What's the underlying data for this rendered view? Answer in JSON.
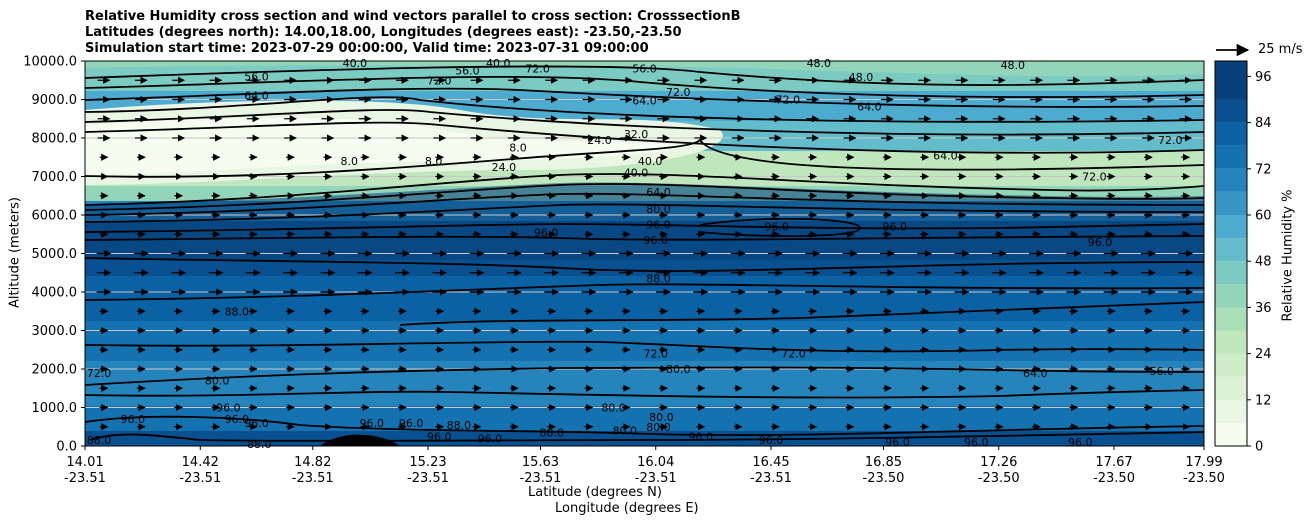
{
  "title": {
    "line1": "Relative Humidity cross section and wind vectors parallel to cross section: CrosssectionB",
    "line2": "Latitudes (degrees north): 14.00,18.00, Longitudes (degrees east): -23.50,-23.50",
    "line3": "Simulation start time: 2023-07-29 00:00:00, Valid time: 2023-07-31 09:00:00"
  },
  "axes": {
    "ylabel": "Altitude (meters)",
    "xlabel_lat": "Latitude (degrees N)",
    "xlabel_lon": "Longitude (degrees E)",
    "colorbar_label": "Relative Humidity %",
    "quiver_key": "25 m/s"
  },
  "colors": {
    "cmap": [
      "#f7fcf0",
      "#e9f6e4",
      "#dcf1d5",
      "#cfecc8",
      "#bfe6bc",
      "#aadeb7",
      "#93d5b9",
      "#7bcbc3",
      "#63bccb",
      "#4dabd0",
      "#3796c4",
      "#2584bb",
      "#1572b0",
      "#0a61a3",
      "#08508f",
      "#08407a"
    ],
    "contour": "#000000",
    "grid": "#c8c8c8"
  },
  "chart_data": {
    "type": "heatmap",
    "title": "Relative Humidity cross section and wind vectors parallel to cross section: CrosssectionB",
    "x_ticks": [
      {
        "lat": "14.01",
        "lon": "-23.51"
      },
      {
        "lat": "14.42",
        "lon": "-23.51"
      },
      {
        "lat": "14.82",
        "lon": "-23.51"
      },
      {
        "lat": "15.23",
        "lon": "-23.51"
      },
      {
        "lat": "15.63",
        "lon": "-23.51"
      },
      {
        "lat": "16.04",
        "lon": "-23.51"
      },
      {
        "lat": "16.45",
        "lon": "-23.51"
      },
      {
        "lat": "16.85",
        "lon": "-23.50"
      },
      {
        "lat": "17.26",
        "lon": "-23.50"
      },
      {
        "lat": "17.67",
        "lon": "-23.50"
      },
      {
        "lat": "17.99",
        "lon": "-23.50"
      }
    ],
    "x_range": [
      14.01,
      17.99
    ],
    "y_ticks": [
      "0.0",
      "1000.0",
      "2000.0",
      "3000.0",
      "4000.0",
      "5000.0",
      "6000.0",
      "7000.0",
      "8000.0",
      "9000.0",
      "10000.0"
    ],
    "y_range": [
      0,
      10000
    ],
    "colorbar_ticks": [
      "0",
      "12",
      "24",
      "36",
      "48",
      "60",
      "72",
      "84",
      "96"
    ],
    "colorbar_range": [
      0,
      100
    ],
    "grid": true,
    "contour_labels": [
      {
        "text": "40.0",
        "lat": 14.97,
        "alt": 9950
      },
      {
        "text": "40.0",
        "lat": 15.48,
        "alt": 9950
      },
      {
        "text": "56.0",
        "lat": 14.62,
        "alt": 9600
      },
      {
        "text": "56.0",
        "lat": 15.37,
        "alt": 9750
      },
      {
        "text": "72.0",
        "lat": 15.27,
        "alt": 9500
      },
      {
        "text": "72.0",
        "lat": 15.62,
        "alt": 9800
      },
      {
        "text": "72.0",
        "lat": 16.51,
        "alt": 9000
      },
      {
        "text": "48.0",
        "lat": 16.62,
        "alt": 9950
      },
      {
        "text": "48.0",
        "lat": 17.31,
        "alt": 9900
      },
      {
        "text": "48.0",
        "lat": 16.77,
        "alt": 9580
      },
      {
        "text": "56.0",
        "lat": 16.0,
        "alt": 9800
      },
      {
        "text": "72.0",
        "lat": 16.12,
        "alt": 9200
      },
      {
        "text": "64.0",
        "lat": 14.62,
        "alt": 9100
      },
      {
        "text": "64.0",
        "lat": 16.0,
        "alt": 8980
      },
      {
        "text": "64.0",
        "lat": 16.8,
        "alt": 8820
      },
      {
        "text": "32.0",
        "lat": 15.97,
        "alt": 8100
      },
      {
        "text": "24.0",
        "lat": 15.84,
        "alt": 7950
      },
      {
        "text": "24.0",
        "lat": 15.5,
        "alt": 7250
      },
      {
        "text": "8.0",
        "lat": 14.95,
        "alt": 7400
      },
      {
        "text": "8.0",
        "lat": 15.25,
        "alt": 7400
      },
      {
        "text": "8.0",
        "lat": 15.55,
        "alt": 7750
      },
      {
        "text": "40.0",
        "lat": 16.02,
        "alt": 7400
      },
      {
        "text": "40.0",
        "lat": 15.97,
        "alt": 7100
      },
      {
        "text": "64.0",
        "lat": 17.07,
        "alt": 7550
      },
      {
        "text": "72.0",
        "lat": 17.6,
        "alt": 7000
      },
      {
        "text": "72.0",
        "lat": 17.87,
        "alt": 7950
      },
      {
        "text": "64.0",
        "lat": 16.05,
        "alt": 6600
      },
      {
        "text": "80.0",
        "lat": 16.05,
        "alt": 6150
      },
      {
        "text": "96.0",
        "lat": 16.05,
        "alt": 5750
      },
      {
        "text": "96.0",
        "lat": 16.04,
        "alt": 5350
      },
      {
        "text": "96.0",
        "lat": 15.65,
        "alt": 5550
      },
      {
        "text": "96.0",
        "lat": 16.47,
        "alt": 5700
      },
      {
        "text": "96.0",
        "lat": 16.89,
        "alt": 5700
      },
      {
        "text": "96.0",
        "lat": 17.62,
        "alt": 5300
      },
      {
        "text": "88.0",
        "lat": 16.05,
        "alt": 4350
      },
      {
        "text": "88.0",
        "lat": 14.55,
        "alt": 3500
      },
      {
        "text": "80.0",
        "lat": 16.12,
        "alt": 2000
      },
      {
        "text": "72.0",
        "lat": 16.04,
        "alt": 2400
      },
      {
        "text": "72.0",
        "lat": 16.53,
        "alt": 2400
      },
      {
        "text": "72.0",
        "lat": 14.06,
        "alt": 1900
      },
      {
        "text": "64.0",
        "lat": 17.39,
        "alt": 1900
      },
      {
        "text": "56.0",
        "lat": 17.84,
        "alt": 1950
      },
      {
        "text": "80.0",
        "lat": 14.48,
        "alt": 1700
      },
      {
        "text": "96.0",
        "lat": 14.52,
        "alt": 1000
      },
      {
        "text": "96.0",
        "lat": 14.55,
        "alt": 700
      },
      {
        "text": "96.0",
        "lat": 14.18,
        "alt": 700
      },
      {
        "text": "96.0",
        "lat": 14.62,
        "alt": 600
      },
      {
        "text": "96.0",
        "lat": 15.03,
        "alt": 600
      },
      {
        "text": "96.0",
        "lat": 15.17,
        "alt": 600
      },
      {
        "text": "96.0",
        "lat": 15.27,
        "alt": 250
      },
      {
        "text": "96.0",
        "lat": 15.45,
        "alt": 200
      },
      {
        "text": "96.0",
        "lat": 16.2,
        "alt": 250
      },
      {
        "text": "96.0",
        "lat": 16.45,
        "alt": 150
      },
      {
        "text": "96.0",
        "lat": 16.9,
        "alt": 100
      },
      {
        "text": "96.0",
        "lat": 17.18,
        "alt": 100
      },
      {
        "text": "96.0",
        "lat": 17.55,
        "alt": 100
      },
      {
        "text": "88.0",
        "lat": 14.06,
        "alt": 150
      },
      {
        "text": "88.0",
        "lat": 14.63,
        "alt": 50
      },
      {
        "text": "88.0",
        "lat": 15.67,
        "alt": 350
      },
      {
        "text": "88.0",
        "lat": 15.34,
        "alt": 550
      },
      {
        "text": "80.0",
        "lat": 15.89,
        "alt": 1000
      },
      {
        "text": "80.0",
        "lat": 15.93,
        "alt": 400
      },
      {
        "text": "80.0",
        "lat": 16.05,
        "alt": 500
      },
      {
        "text": "80.0",
        "lat": 16.06,
        "alt": 750
      }
    ]
  }
}
